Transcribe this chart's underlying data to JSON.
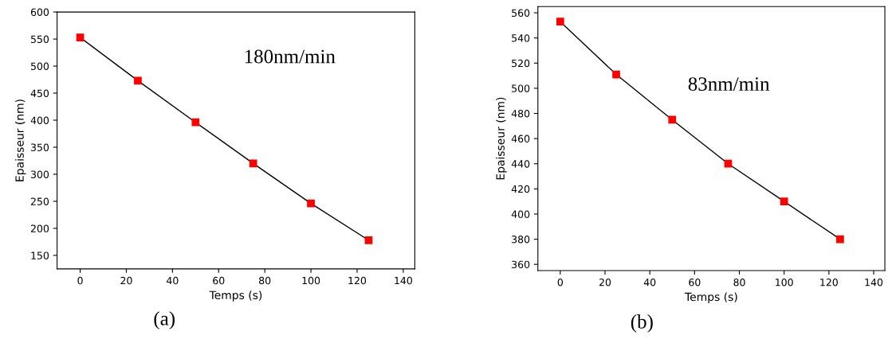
{
  "chart_data": [
    {
      "type": "line",
      "xlabel": "Temps (s)",
      "ylabel": "Epaisseur (nm)",
      "x": [
        0,
        25,
        50,
        75,
        100,
        125
      ],
      "series": [
        {
          "color": "#ff0000",
          "marker": "square",
          "values": [
            553,
            473,
            396,
            320,
            246,
            178
          ]
        }
      ],
      "xlim": [
        -10,
        145
      ],
      "xticks": [
        0,
        20,
        40,
        60,
        80,
        100,
        120,
        140
      ],
      "ylim": [
        125,
        600
      ],
      "yticks": [
        150,
        200,
        250,
        300,
        350,
        400,
        450,
        500,
        550,
        600
      ],
      "annotations": [
        "180nm/min",
        "(a)"
      ],
      "grid": false,
      "legend": false
    },
    {
      "type": "line",
      "xlabel": "Temps (s)",
      "ylabel": "Epaisseur (nm)",
      "x": [
        0,
        25,
        50,
        75,
        100,
        125
      ],
      "series": [
        {
          "color": "#ff0000",
          "marker": "square",
          "values": [
            553,
            511,
            475,
            440,
            410,
            380
          ]
        }
      ],
      "xlim": [
        -10,
        145
      ],
      "xticks": [
        0,
        20,
        40,
        60,
        80,
        100,
        120,
        140
      ],
      "ylim": [
        355,
        565
      ],
      "yticks": [
        360,
        380,
        400,
        420,
        440,
        460,
        480,
        500,
        520,
        540,
        560
      ],
      "annotations": [
        "83nm/min",
        "(b)"
      ],
      "grid": false,
      "legend": false
    }
  ]
}
